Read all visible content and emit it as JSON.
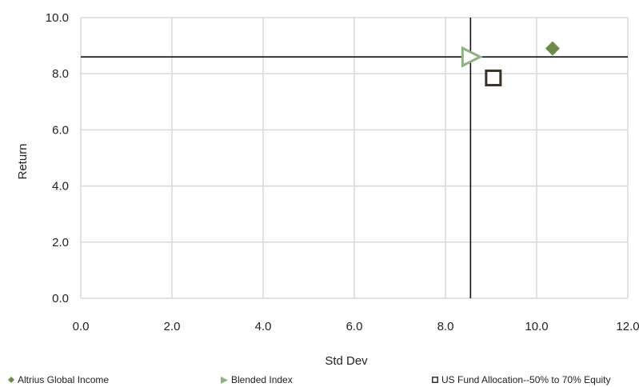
{
  "chart_data": {
    "type": "scatter",
    "xlabel": "Std Dev",
    "ylabel": "Return",
    "xlim": [
      0,
      12
    ],
    "ylim": [
      0,
      10
    ],
    "x_ticks": [
      "0.0",
      "2.0",
      "4.0",
      "6.0",
      "8.0",
      "10.0",
      "12.0"
    ],
    "y_ticks": [
      "0.0",
      "2.0",
      "4.0",
      "6.0",
      "8.0",
      "10.0"
    ],
    "grid": true,
    "legend_position": "bottom",
    "series": [
      {
        "name": "Altrius Global Income",
        "x": 10.35,
        "y": 8.9,
        "marker": "diamond",
        "color": "#6f8a4d"
      },
      {
        "name": "Blended Index",
        "x": 8.55,
        "y": 8.6,
        "marker": "triangle-right",
        "color": "#8fb184"
      },
      {
        "name": "US Fund Allocation--50% to 70% Equity",
        "x": 9.05,
        "y": 7.85,
        "marker": "square",
        "color": "#3a3226"
      }
    ],
    "reference_lines": {
      "x": 8.55,
      "y": 8.6
    }
  }
}
